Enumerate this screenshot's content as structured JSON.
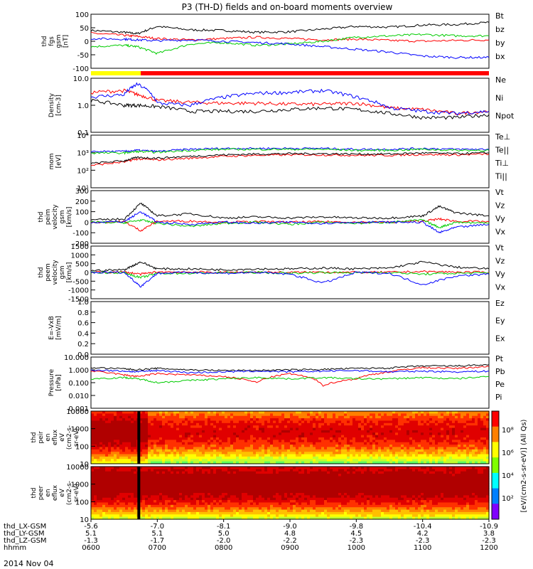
{
  "title": "P3 (TH-D) fields and on-board moments overview",
  "date_label": "2014 Nov 04",
  "bottom_axis": {
    "row_labels": [
      "thd_LX-GSM",
      "thd_LY-GSM",
      "thd_LZ-GSM",
      "hhmm"
    ],
    "columns": [
      [
        "-5.6",
        "5.1",
        "-1.3",
        "0600"
      ],
      [
        "-7.0",
        "5.1",
        "-1.7",
        "0700"
      ],
      [
        "-8.1",
        "5.0",
        "-2.0",
        "0800"
      ],
      [
        "-9.0",
        "4.8",
        "-2.2",
        "0900"
      ],
      [
        "-9.8",
        "4.5",
        "-2.3",
        "1000"
      ],
      [
        "-10.4",
        "4.2",
        "-2.3",
        "1100"
      ],
      [
        "-10.9",
        "3.8",
        "-2.3",
        "1200"
      ]
    ]
  },
  "colorbar": {
    "label": "[eV/(cm2-s-sr-eV)] (All Qs)",
    "ticks": [
      "10⁸",
      "10⁶",
      "10⁴",
      "10²"
    ]
  },
  "chart_data": [
    {
      "type": "line",
      "ylabel": [
        "thd",
        "fgs",
        "gsm",
        "[nT]"
      ],
      "yticks": [
        "100",
        "50",
        "0",
        "-50",
        "-100"
      ],
      "ylim": [
        -100,
        100
      ],
      "legend": [
        {
          "name": "Bt",
          "color": "#000000"
        },
        {
          "name": "bz",
          "color": "#ff0000"
        },
        {
          "name": "by",
          "color": "#00cc00"
        },
        {
          "name": "bx",
          "color": "#0000ff"
        }
      ],
      "x": [
        6.0,
        6.5,
        6.7,
        7.0,
        7.5,
        8.0,
        8.5,
        9.0,
        9.5,
        10.0,
        10.5,
        11.0,
        11.5,
        12.0
      ],
      "series": [
        {
          "name": "Bt",
          "values": [
            40,
            33,
            28,
            55,
            42,
            40,
            33,
            35,
            45,
            55,
            52,
            60,
            62,
            70
          ]
        },
        {
          "name": "bz",
          "values": [
            30,
            22,
            18,
            10,
            5,
            10,
            15,
            10,
            5,
            8,
            3,
            0,
            3,
            5
          ]
        },
        {
          "name": "by",
          "values": [
            -20,
            -15,
            -20,
            -45,
            -10,
            -5,
            -15,
            -10,
            0,
            15,
            20,
            25,
            20,
            20
          ]
        },
        {
          "name": "bx",
          "values": [
            10,
            8,
            5,
            2,
            5,
            0,
            -5,
            -10,
            -20,
            -30,
            -40,
            -55,
            -60,
            -60
          ]
        }
      ]
    },
    {
      "type": "line",
      "ylabel": [
        "Density",
        "[cm-3]"
      ],
      "yscale": "log",
      "yticks": [
        "10.0",
        "1.0",
        "0.1"
      ],
      "ylim": [
        0.1,
        10
      ],
      "legend": [
        {
          "name": "Ne",
          "color": "#ff0000"
        },
        {
          "name": "Ni",
          "color": "#000000"
        },
        {
          "name": "Npot",
          "color": "#0000ff"
        }
      ],
      "x": [
        6.0,
        6.5,
        6.7,
        7.0,
        7.5,
        8.0,
        8.5,
        9.0,
        9.5,
        10.0,
        10.5,
        11.0,
        11.5,
        12.0
      ],
      "series": [
        {
          "name": "Ne",
          "values": [
            3.0,
            3.5,
            2.5,
            1.5,
            1.3,
            1.2,
            1.2,
            1.1,
            1.1,
            1.2,
            0.8,
            0.7,
            0.5,
            0.6
          ]
        },
        {
          "name": "Ni",
          "values": [
            1.5,
            1.0,
            1.0,
            0.9,
            0.6,
            0.6,
            0.6,
            0.7,
            0.8,
            0.7,
            0.5,
            0.35,
            0.35,
            0.45
          ]
        },
        {
          "name": "Npot",
          "values": [
            2.0,
            2.5,
            6.0,
            1.2,
            1.0,
            2.0,
            2.8,
            3.0,
            3.5,
            2.0,
            0.8,
            0.6,
            0.5,
            0.6
          ]
        }
      ]
    },
    {
      "type": "line",
      "ylabel": [
        "mom",
        "[eV]"
      ],
      "yscale": "log",
      "yticks": [
        "10⁴",
        "10³",
        "10²",
        "10¹"
      ],
      "ylim": [
        10,
        30000
      ],
      "legend": [
        {
          "name": "Te⊥",
          "color": "#ff0000"
        },
        {
          "name": "Te||",
          "color": "#000000"
        },
        {
          "name": "Ti⊥",
          "color": "#0000ff"
        },
        {
          "name": "Ti||",
          "color": "#00cc00"
        }
      ],
      "x": [
        6.0,
        6.5,
        6.7,
        7.0,
        7.5,
        8.0,
        8.5,
        9.0,
        9.5,
        10.0,
        10.5,
        11.0,
        11.5,
        12.0
      ],
      "series": [
        {
          "name": "Te⊥",
          "values": [
            300,
            500,
            800,
            700,
            900,
            1200,
            1400,
            1500,
            1500,
            1400,
            1400,
            1600,
            1500,
            1700
          ]
        },
        {
          "name": "Te||",
          "values": [
            400,
            600,
            1000,
            900,
            1200,
            1500,
            1700,
            1800,
            1800,
            1700,
            1700,
            2000,
            1800,
            2000
          ]
        },
        {
          "name": "Ti⊥",
          "values": [
            2500,
            2500,
            3000,
            2500,
            3500,
            4000,
            4000,
            4000,
            4000,
            3500,
            3500,
            4000,
            3500,
            3500
          ]
        },
        {
          "name": "Ti||",
          "values": [
            2000,
            2000,
            2500,
            2200,
            3000,
            3500,
            3500,
            3500,
            3500,
            3000,
            3000,
            3500,
            3000,
            3000
          ]
        }
      ]
    },
    {
      "type": "line",
      "ylabel": [
        "thd",
        "peim",
        "velocity",
        "gsm",
        "[km/s]"
      ],
      "yticks": [
        "300",
        "200",
        "100",
        "0",
        "-100",
        "-200"
      ],
      "ylim": [
        -200,
        300
      ],
      "legend": [
        {
          "name": "Vt",
          "color": "#000000"
        },
        {
          "name": "Vz",
          "color": "#ff0000"
        },
        {
          "name": "Vy",
          "color": "#00cc00"
        },
        {
          "name": "Vx",
          "color": "#0000ff"
        }
      ],
      "x": [
        6.0,
        6.5,
        6.75,
        7.0,
        7.5,
        8.0,
        8.5,
        9.0,
        9.5,
        10.0,
        10.5,
        11.0,
        11.25,
        11.5,
        12.0
      ],
      "series": [
        {
          "name": "Vt",
          "values": [
            20,
            30,
            180,
            60,
            80,
            40,
            50,
            40,
            50,
            40,
            40,
            60,
            150,
            90,
            60
          ]
        },
        {
          "name": "Vz",
          "values": [
            0,
            5,
            -80,
            10,
            10,
            0,
            5,
            0,
            5,
            0,
            0,
            10,
            30,
            10,
            5
          ]
        },
        {
          "name": "Vy",
          "values": [
            0,
            -5,
            20,
            -10,
            -40,
            -10,
            0,
            -20,
            0,
            -10,
            0,
            20,
            -50,
            0,
            -10
          ]
        },
        {
          "name": "Vx",
          "values": [
            0,
            5,
            100,
            0,
            -20,
            0,
            -10,
            0,
            -10,
            0,
            0,
            0,
            -100,
            -50,
            -20
          ]
        }
      ]
    },
    {
      "type": "line",
      "ylabel": [
        "thd",
        "peem",
        "velocity",
        "gsm",
        "[km/s]"
      ],
      "yticks": [
        "1500",
        "1000",
        "500",
        "0",
        "-500",
        "-1000",
        "-1500"
      ],
      "ylim": [
        -1500,
        1500
      ],
      "legend": [
        {
          "name": "Vt",
          "color": "#000000"
        },
        {
          "name": "Vz",
          "color": "#ff0000"
        },
        {
          "name": "Vy",
          "color": "#00cc00"
        },
        {
          "name": "Vx",
          "color": "#0000ff"
        }
      ],
      "x": [
        6.0,
        6.5,
        6.75,
        7.0,
        7.5,
        8.0,
        8.5,
        9.0,
        9.5,
        10.0,
        10.5,
        11.0,
        11.5,
        12.0
      ],
      "series": [
        {
          "name": "Vt",
          "values": [
            100,
            150,
            600,
            200,
            200,
            150,
            200,
            200,
            250,
            200,
            250,
            600,
            300,
            200
          ]
        },
        {
          "name": "Vz",
          "values": [
            0,
            20,
            -100,
            30,
            20,
            0,
            20,
            0,
            20,
            0,
            10,
            50,
            20,
            10
          ]
        },
        {
          "name": "Vy",
          "values": [
            0,
            -20,
            -300,
            -50,
            -50,
            -20,
            0,
            -50,
            0,
            -20,
            0,
            -100,
            -50,
            -30
          ]
        },
        {
          "name": "Vx",
          "values": [
            0,
            0,
            -800,
            -50,
            0,
            -50,
            0,
            -100,
            -600,
            0,
            -50,
            -700,
            -200,
            -100
          ]
        }
      ]
    },
    {
      "type": "line",
      "ylabel": [
        "E=-VxB",
        "[mV/m]"
      ],
      "yticks": [
        "1.0",
        "0.8",
        "0.6",
        "0.4",
        "0.2",
        "0.0"
      ],
      "ylim": [
        0,
        1
      ],
      "legend": [
        {
          "name": "Ez",
          "color": "#ff0000"
        },
        {
          "name": "Ey",
          "color": "#00cc00"
        },
        {
          "name": "Ex",
          "color": "#0000ff"
        }
      ],
      "x": [],
      "series": []
    },
    {
      "type": "line",
      "ylabel": [
        "Pressure",
        "[nPa]"
      ],
      "yscale": "log",
      "yticks": [
        "10.000",
        "1.000",
        "0.100",
        "0.010",
        "0.001"
      ],
      "ylim": [
        0.001,
        10
      ],
      "legend": [
        {
          "name": "Pt",
          "color": "#000000"
        },
        {
          "name": "Pb",
          "color": "#ff0000"
        },
        {
          "name": "Pe",
          "color": "#00cc00"
        },
        {
          "name": "Pi",
          "color": "#0000ff"
        }
      ],
      "x": [
        6.0,
        6.5,
        6.7,
        7.0,
        7.5,
        8.0,
        8.5,
        9.0,
        9.5,
        10.0,
        10.5,
        11.0,
        11.5,
        12.0
      ],
      "series": [
        {
          "name": "Pt",
          "values": [
            1.5,
            1.2,
            1.0,
            1.3,
            1.0,
            0.9,
            0.9,
            1.0,
            1.1,
            1.3,
            1.4,
            2.0,
            2.0,
            2.5
          ]
        },
        {
          "name": "Pb",
          "values": [
            0.8,
            0.4,
            0.3,
            0.5,
            0.4,
            0.3,
            0.1,
            0.5,
            0.06,
            0.2,
            0.7,
            1.5,
            1.3,
            1.8
          ]
        },
        {
          "name": "Pe",
          "values": [
            0.2,
            0.25,
            0.2,
            0.1,
            0.15,
            0.2,
            0.25,
            0.2,
            0.25,
            0.2,
            0.2,
            0.25,
            0.2,
            0.3
          ]
        },
        {
          "name": "Pi",
          "values": [
            1.0,
            0.8,
            0.7,
            0.9,
            0.6,
            0.7,
            0.8,
            0.7,
            0.8,
            0.9,
            0.7,
            0.8,
            0.7,
            0.8
          ]
        }
      ]
    },
    {
      "type": "heatmap",
      "ylabel": [
        "thd",
        "peir",
        "en",
        "eflux",
        "eV",
        "(cm2-s-",
        "sr-eV)"
      ],
      "yticks": [
        "10000",
        "1000",
        "100",
        "10"
      ],
      "yscale": "log",
      "ylim": [
        5,
        25000
      ]
    },
    {
      "type": "heatmap",
      "ylabel": [
        "thd",
        "peer",
        "en",
        "eflux",
        "eV",
        "(cm2-s-",
        "sr-eV)"
      ],
      "yticks": [
        "10000",
        "1000",
        "100",
        "10"
      ],
      "yscale": "log",
      "ylim": [
        5,
        25000
      ]
    }
  ],
  "status_bar": {
    "segments": [
      {
        "from": 6.0,
        "to": 6.75,
        "color": "#ffff00"
      },
      {
        "from": 6.75,
        "to": 12.0,
        "color": "#ff0000"
      }
    ]
  }
}
